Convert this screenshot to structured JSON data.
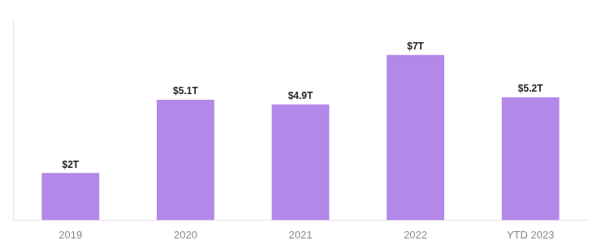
{
  "chart_data": {
    "type": "bar",
    "categories": [
      "2019",
      "2020",
      "2021",
      "2022",
      "YTD 2023"
    ],
    "values": [
      2,
      5.1,
      4.9,
      7,
      5.2
    ],
    "value_labels": [
      "$2T",
      "$5.1T",
      "$4.9T",
      "$7T",
      "$5.2T"
    ],
    "data_labels": true,
    "color": "#b388e8",
    "ylim": [
      0,
      8.5
    ],
    "tick_labels": "x",
    "grid": false
  }
}
